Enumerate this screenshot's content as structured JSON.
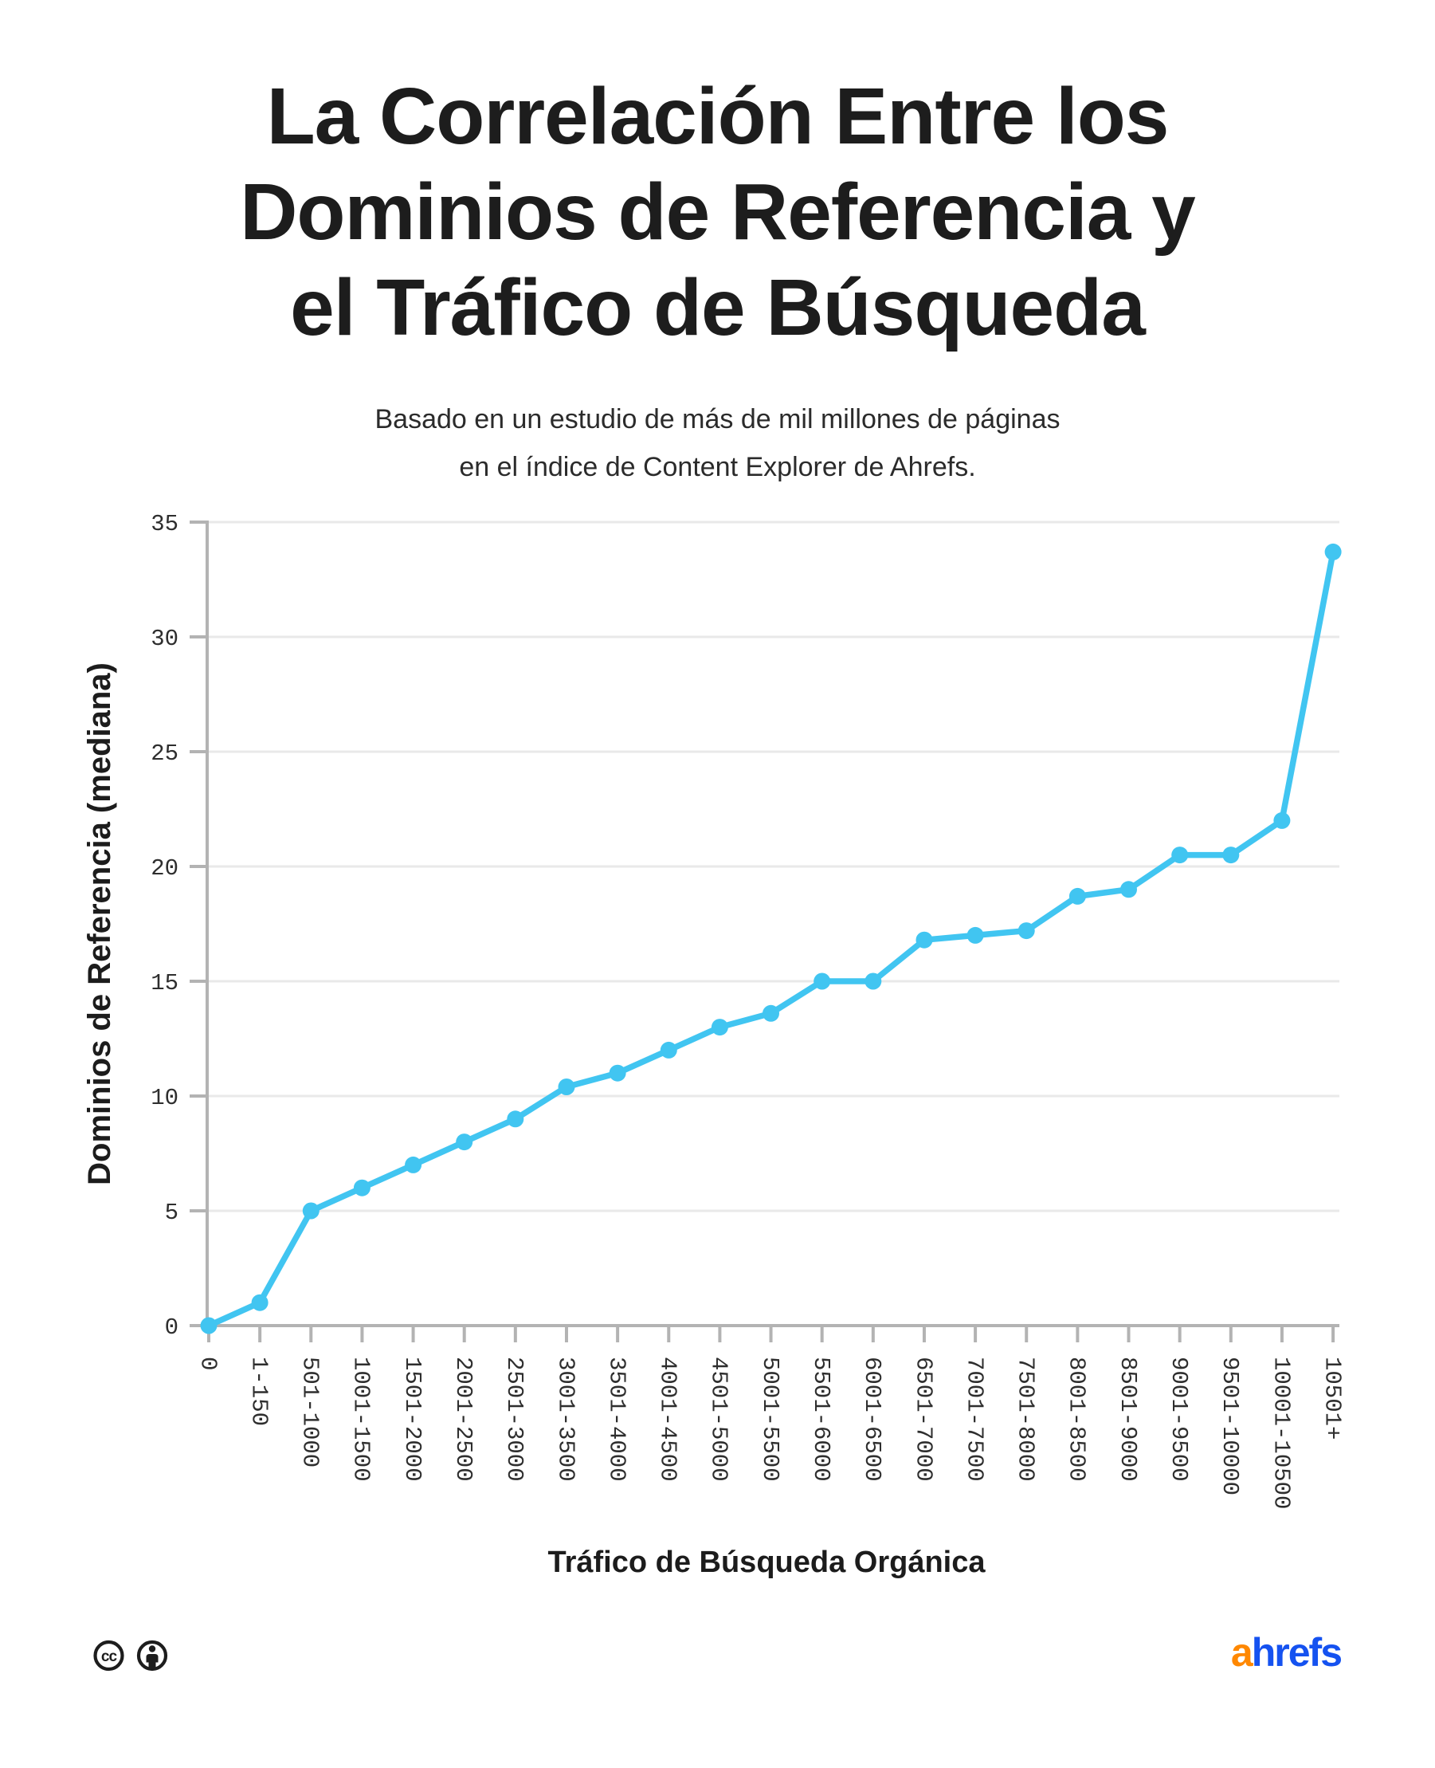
{
  "title": {
    "line1": "La Correlación Entre los",
    "line2": "Dominios de Referencia y",
    "line3": "el Tráfico de Búsqueda"
  },
  "subtitle": {
    "line1": "Basado en un estudio de más de mil millones de páginas",
    "line2": "en el índice de Content Explorer de Ahrefs."
  },
  "chart_data": {
    "type": "line",
    "title": "",
    "xlabel": "Tráfico de Búsqueda Orgánica",
    "ylabel": "Dominios de Referencia (mediana)",
    "categories": [
      "0",
      "1-150",
      "501-1000",
      "1001-1500",
      "1501-2000",
      "2001-2500",
      "2501-3000",
      "3001-3500",
      "3501-4000",
      "4001-4500",
      "4501-5000",
      "5001-5500",
      "5501-6000",
      "6001-6500",
      "6501-7000",
      "7001-7500",
      "7501-8000",
      "8001-8500",
      "8501-9000",
      "9001-9500",
      "9501-10000",
      "10001-10500",
      "10501+"
    ],
    "values": [
      0,
      1,
      5,
      6,
      7,
      8,
      9,
      10.4,
      11,
      12,
      13,
      13.6,
      15,
      15,
      16.8,
      17,
      17.2,
      18.7,
      19,
      20.5,
      20.5,
      22,
      33.7
    ],
    "y_ticks": [
      0,
      5,
      10,
      15,
      20,
      25,
      30,
      35
    ],
    "ylim": [
      0,
      35
    ],
    "grid": "horizontal-only",
    "legend": "none",
    "line_color": "#41C5F1",
    "axis_color": "#B3B3B3",
    "grid_color": "#E9E9E9",
    "tick_label_color": "#2e2e2e"
  },
  "footer": {
    "license": {
      "icon1": "cc-icon",
      "icon2": "attribution-person-icon",
      "cc_letters": "cc"
    },
    "logo": {
      "part_a": "a",
      "part_rest": "hrefs",
      "a_color": "#FF8800",
      "rest_color": "#1552F0"
    }
  }
}
